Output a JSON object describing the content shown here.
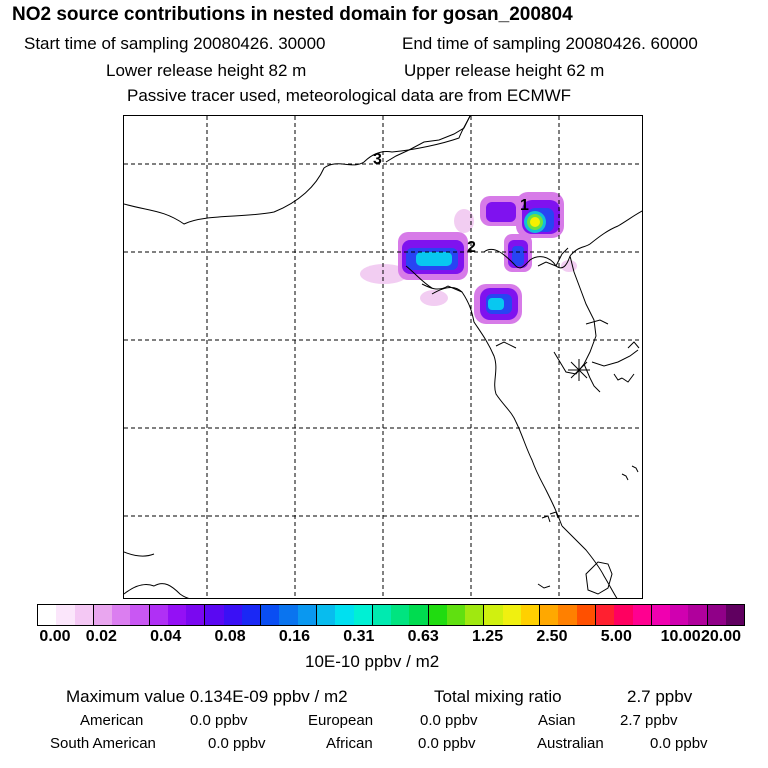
{
  "header": {
    "title": "NO2 source contributions in nested domain for gosan_200804",
    "start_time": "Start time of sampling 20080426. 30000",
    "end_time": "End time of sampling 20080426. 60000",
    "lower_release": "Lower release height   82 m",
    "upper_release": "Upper release height   62 m",
    "tracer_note": "Passive tracer used, meteorological data are from ECMWF"
  },
  "map": {
    "site_labels": [
      "1",
      "2",
      "3"
    ],
    "receptor_marker": "star-icon"
  },
  "colorbar": {
    "tick_labels": [
      "0.00",
      "0.02",
      "0.04",
      "0.08",
      "0.16",
      "0.31",
      "0.63",
      "1.25",
      "2.50",
      "5.00",
      "10.00",
      "20.00"
    ],
    "units": "10E-10 ppbv / m2",
    "colors": [
      "#ffffff",
      "#fbe6fb",
      "#f4c8f4",
      "#e9a6ef",
      "#db7ef0",
      "#c957f3",
      "#b030f5",
      "#9410f5",
      "#7a08f0",
      "#5a08f2",
      "#3a10f5",
      "#1a28f5",
      "#0a4ef3",
      "#0a74ef",
      "#0a98f0",
      "#08bcee",
      "#00e0f0",
      "#00f0d4",
      "#00eab0",
      "#00e480",
      "#00dc50",
      "#20dc10",
      "#60e010",
      "#a0e810",
      "#d0f010",
      "#f0f010",
      "#ffd000",
      "#ffa800",
      "#ff8000",
      "#ff5000",
      "#ff2030",
      "#ff0060",
      "#ff0090",
      "#f000b0",
      "#d000b0",
      "#b0009c",
      "#900088",
      "#600060"
    ]
  },
  "stats": {
    "max_label": "Maximum value  0.134E-09 ppbv / m2",
    "total_label": "Total mixing ratio",
    "total_value": "2.7 ppbv",
    "american_label": "American",
    "american_value": "0.0 ppbv",
    "european_label": "European",
    "european_value": "0.0 ppbv",
    "asian_label": "Asian",
    "asian_value": "2.7 ppbv",
    "south_american_label": "South American",
    "south_american_value": "0.0 ppbv",
    "african_label": "African",
    "african_value": "0.0 ppbv",
    "australian_label": "Australian",
    "australian_value": "0.0 ppbv"
  }
}
